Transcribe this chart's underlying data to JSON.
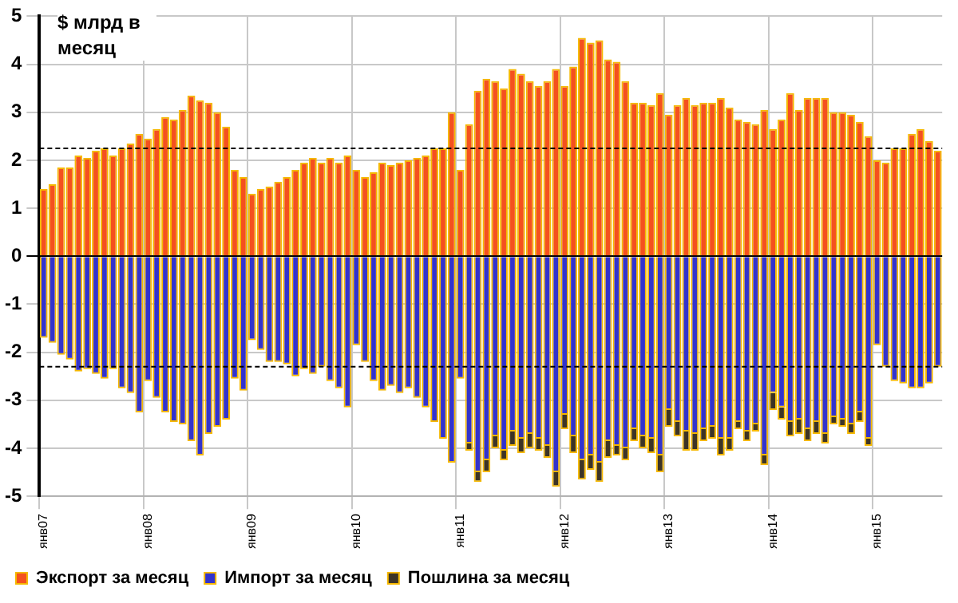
{
  "chart_data": {
    "type": "bar",
    "stacked": true,
    "ylabel": "$ млрд в месяц",
    "categories": [
      "янв07",
      null,
      null,
      null,
      null,
      null,
      null,
      null,
      null,
      null,
      null,
      null,
      "янв08",
      null,
      null,
      null,
      null,
      null,
      null,
      null,
      null,
      null,
      null,
      null,
      "янв09",
      null,
      null,
      null,
      null,
      null,
      null,
      null,
      null,
      null,
      null,
      null,
      "янв10",
      null,
      null,
      null,
      null,
      null,
      null,
      null,
      null,
      null,
      null,
      null,
      "янв11",
      null,
      null,
      null,
      null,
      null,
      null,
      null,
      null,
      null,
      null,
      null,
      "янв12",
      null,
      null,
      null,
      null,
      null,
      null,
      null,
      null,
      null,
      null,
      null,
      "янв13",
      null,
      null,
      null,
      null,
      null,
      null,
      null,
      null,
      null,
      null,
      null,
      "янв14",
      null,
      null,
      null,
      null,
      null,
      null,
      null,
      null,
      null,
      null,
      null,
      "янв15",
      null,
      null,
      null,
      null,
      null,
      null,
      null
    ],
    "series": [
      {
        "name": "Экспорт за месяц",
        "color": "#f4511e",
        "values": [
          1.4,
          1.5,
          1.85,
          1.85,
          2.1,
          2.05,
          2.2,
          2.25,
          2.1,
          2.25,
          2.35,
          2.55,
          2.45,
          2.65,
          2.9,
          2.85,
          3.05,
          3.35,
          3.25,
          3.2,
          3.0,
          2.7,
          1.8,
          1.65,
          1.3,
          1.4,
          1.45,
          1.55,
          1.65,
          1.8,
          1.95,
          2.05,
          1.95,
          2.05,
          1.95,
          2.1,
          1.8,
          1.65,
          1.75,
          1.95,
          1.9,
          1.95,
          2.0,
          2.05,
          2.1,
          2.25,
          2.25,
          3.0,
          1.8,
          2.75,
          3.45,
          3.7,
          3.65,
          3.5,
          3.9,
          3.8,
          3.65,
          3.55,
          3.65,
          3.9,
          3.55,
          3.95,
          4.55,
          4.45,
          4.5,
          4.1,
          4.05,
          3.65,
          3.2,
          3.2,
          3.15,
          3.4,
          2.95,
          3.15,
          3.3,
          3.15,
          3.2,
          3.2,
          3.3,
          3.1,
          2.85,
          2.8,
          2.75,
          3.05,
          2.65,
          2.85,
          3.4,
          3.05,
          3.3,
          3.3,
          3.3,
          3.0,
          3.0,
          2.95,
          2.8,
          2.5,
          2.0,
          1.95,
          2.25,
          2.25,
          2.55,
          2.65,
          2.4,
          2.2
        ]
      },
      {
        "name": "Импорт за месяц",
        "color": "#3333cc",
        "values": [
          -1.7,
          -1.8,
          -2.05,
          -2.15,
          -2.4,
          -2.35,
          -2.45,
          -2.55,
          -2.35,
          -2.75,
          -2.85,
          -3.25,
          -2.6,
          -2.95,
          -3.25,
          -3.45,
          -3.5,
          -3.85,
          -4.15,
          -3.7,
          -3.55,
          -3.4,
          -2.55,
          -2.8,
          -1.75,
          -1.95,
          -2.2,
          -2.2,
          -2.25,
          -2.5,
          -2.35,
          -2.45,
          -2.3,
          -2.6,
          -2.75,
          -3.15,
          -1.85,
          -2.2,
          -2.6,
          -2.8,
          -2.7,
          -2.85,
          -2.75,
          -2.95,
          -3.15,
          -3.45,
          -3.8,
          -4.3,
          -2.55,
          -3.9,
          -4.5,
          -4.25,
          -3.75,
          -4.05,
          -3.65,
          -3.8,
          -3.7,
          -3.8,
          -3.95,
          -4.5,
          -3.3,
          -3.75,
          -4.25,
          -4.15,
          -4.3,
          -3.85,
          -3.95,
          -4.0,
          -3.6,
          -3.75,
          -3.8,
          -4.15,
          -3.2,
          -3.45,
          -3.65,
          -3.7,
          -3.6,
          -3.55,
          -3.8,
          -3.8,
          -3.45,
          -3.65,
          -3.5,
          -4.15,
          -2.85,
          -3.15,
          -3.45,
          -3.4,
          -3.6,
          -3.45,
          -3.7,
          -3.35,
          -3.4,
          -3.5,
          -3.25,
          -3.8,
          -1.85,
          -2.3,
          -2.6,
          -2.65,
          -2.75,
          -2.75,
          -2.65,
          -2.3
        ]
      },
      {
        "name": "Пошлина за месяц",
        "color": "#3d3425",
        "values": [
          null,
          null,
          null,
          null,
          null,
          null,
          null,
          null,
          null,
          null,
          null,
          null,
          null,
          null,
          null,
          null,
          null,
          null,
          null,
          null,
          null,
          null,
          null,
          null,
          null,
          null,
          null,
          null,
          null,
          null,
          null,
          null,
          null,
          null,
          null,
          null,
          null,
          null,
          null,
          null,
          null,
          null,
          null,
          null,
          null,
          null,
          null,
          null,
          null,
          -0.15,
          -0.2,
          -0.25,
          -0.25,
          -0.2,
          -0.3,
          -0.3,
          -0.3,
          -0.25,
          -0.25,
          -0.3,
          -0.3,
          -0.35,
          -0.4,
          -0.3,
          -0.4,
          -0.35,
          -0.2,
          -0.25,
          -0.25,
          -0.25,
          -0.3,
          -0.35,
          -0.35,
          -0.3,
          -0.4,
          -0.35,
          -0.25,
          -0.25,
          -0.35,
          -0.25,
          -0.15,
          -0.2,
          -0.15,
          -0.2,
          -0.35,
          -0.25,
          -0.3,
          -0.3,
          -0.25,
          -0.25,
          -0.2,
          -0.15,
          -0.15,
          -0.2,
          -0.2,
          -0.15,
          null,
          null,
          null,
          null,
          null,
          null,
          null,
          null
        ]
      }
    ],
    "ylim": [
      -5,
      5
    ],
    "yticks": [
      -5,
      -4,
      -3,
      -2,
      -1,
      0,
      1,
      2,
      3,
      4,
      5
    ],
    "grid": true,
    "legend": "bottom left",
    "ref_lines": [
      {
        "axis": "y",
        "value": 2.25,
        "color": "#000000",
        "line_style": "dashed"
      },
      {
        "axis": "y",
        "value": -2.3,
        "color": "#000000",
        "line_style": "dashed"
      }
    ]
  }
}
